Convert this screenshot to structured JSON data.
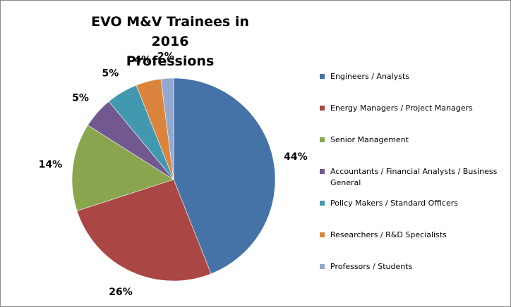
{
  "chart_data": {
    "type": "pie",
    "title_lines": [
      "EVO M&V Trainees in 2016",
      "Professions"
    ],
    "slices": [
      {
        "label": "Engineers / Analysts",
        "value": 44,
        "display": "44%",
        "color": "#4572a7"
      },
      {
        "label": "Energy Managers / Project Managers",
        "value": 26,
        "display": "26%",
        "color": "#aa4643"
      },
      {
        "label": "Senior Management",
        "value": 14,
        "display": "14%",
        "color": "#89a54e"
      },
      {
        "label": "Accountants / Financial Analysts / Business General",
        "value": 5,
        "display": "5%",
        "color": "#71588f"
      },
      {
        "label": "Policy Makers / Standard Officers",
        "value": 5,
        "display": "5%",
        "color": "#4198af"
      },
      {
        "label": "Researchers / R&D Specialists",
        "value": 4,
        "display": "4%",
        "color": "#db843d"
      },
      {
        "label": "Professors / Students",
        "value": 2,
        "display": "2%",
        "color": "#93a9cf"
      }
    ],
    "legend_position": "right",
    "start_angle": "12 o'clock, clockwise"
  }
}
